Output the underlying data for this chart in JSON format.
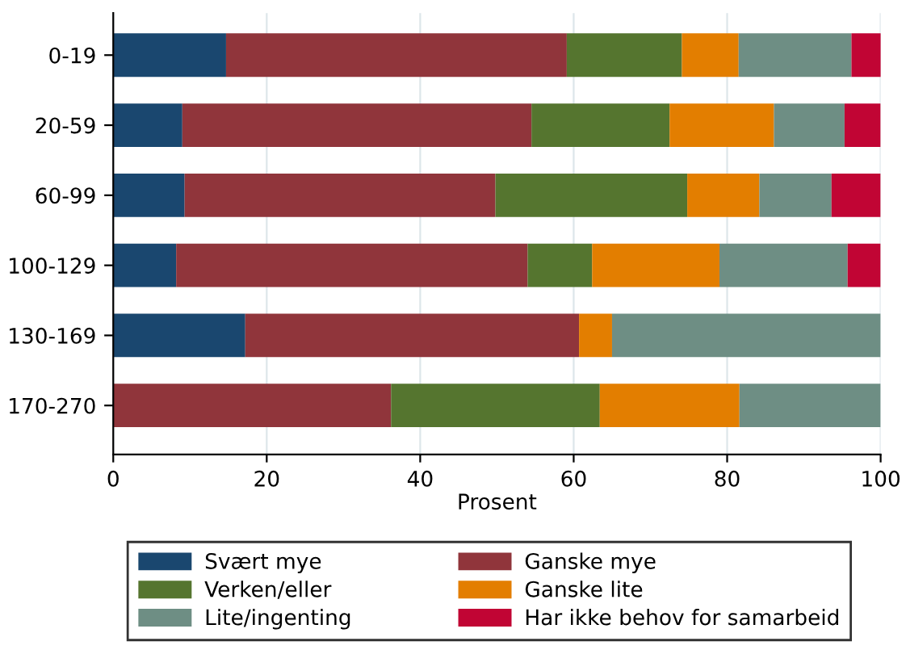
{
  "chart_data": {
    "type": "bar",
    "orientation": "horizontal",
    "stacked": true,
    "xlabel": "Prosent",
    "categories": [
      "0-19",
      "20-59",
      "60-99",
      "100-129",
      "130-169",
      "170-270"
    ],
    "series": [
      {
        "name": "Svært mye",
        "color": "#1a476f",
        "values": [
          14.7,
          9.0,
          9.3,
          8.2,
          17.2,
          0
        ]
      },
      {
        "name": "Ganske mye",
        "color": "#90353b",
        "values": [
          44.4,
          45.5,
          40.5,
          45.8,
          43.5,
          36.2
        ]
      },
      {
        "name": "Verken/eller",
        "color": "#55752f",
        "values": [
          15.0,
          18.0,
          25.0,
          8.4,
          0,
          27.2
        ]
      },
      {
        "name": "Ganske lite",
        "color": "#e37e00",
        "values": [
          7.4,
          13.6,
          9.4,
          16.6,
          4.3,
          18.2
        ]
      },
      {
        "name": "Lite/ingenting",
        "color": "#6e8e84",
        "values": [
          14.7,
          9.2,
          9.4,
          16.7,
          35.0,
          18.4
        ]
      },
      {
        "name": "Har ikke behov for samarbeid",
        "color": "#c10534",
        "values": [
          3.9,
          4.7,
          6.4,
          4.3,
          0,
          0
        ]
      }
    ],
    "xlim": [
      0,
      100
    ],
    "xticks": [
      0,
      20,
      40,
      60,
      80,
      100
    ],
    "grid": "x",
    "legend": "bottom"
  }
}
